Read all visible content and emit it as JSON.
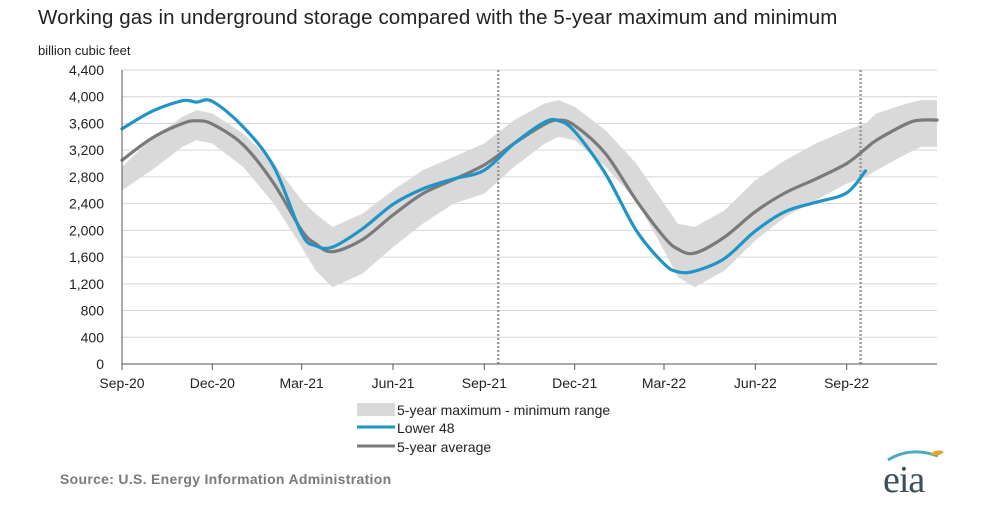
{
  "title": "Working gas in underground  storage compared with the 5-year maximum and minimum",
  "source": "Source:  U.S. Energy Information Administration",
  "logo_text": "eia",
  "colors": {
    "lower48": "#1f95c7",
    "average": "#7a7a7a",
    "range": "#d9d9d9",
    "grid": "#d6d6d6",
    "forecast_line": "#9a9a9a",
    "logo_swoosh": "#4da9c4",
    "logo_leaf": "#e0a72a"
  },
  "chart_data": {
    "type": "area",
    "ylabel": "billion cubic feet",
    "ylim": [
      0,
      4400
    ],
    "yticks": [
      "0",
      "400",
      "800",
      "1,200",
      "1,600",
      "2,000",
      "2,400",
      "2,800",
      "3,200",
      "3,600",
      "4,000",
      "4,400"
    ],
    "ytick_values": [
      0,
      400,
      800,
      1200,
      1600,
      2000,
      2400,
      2800,
      3200,
      3600,
      4000,
      4400
    ],
    "x_start": "2020-09-01",
    "x_end": "2022-12-01",
    "xticks": [
      {
        "label": "Sep-20",
        "date": "2020-09-01"
      },
      {
        "label": "Dec-20",
        "date": "2020-12-01"
      },
      {
        "label": "Mar-21",
        "date": "2021-03-01"
      },
      {
        "label": "Jun-21",
        "date": "2021-06-01"
      },
      {
        "label": "Sep-21",
        "date": "2021-09-01"
      },
      {
        "label": "Dec-21",
        "date": "2021-12-01"
      },
      {
        "label": "Mar-22",
        "date": "2022-03-01"
      },
      {
        "label": "Jun-22",
        "date": "2022-06-01"
      },
      {
        "label": "Sep-22",
        "date": "2022-09-01"
      }
    ],
    "vertical_markers": [
      "2021-09-15",
      "2022-09-15"
    ],
    "grid": true,
    "legend_position": "bottom",
    "x": [
      "2020-09-01",
      "2020-10-01",
      "2020-11-01",
      "2020-11-15",
      "2020-12-01",
      "2021-01-01",
      "2021-02-01",
      "2021-03-01",
      "2021-03-15",
      "2021-04-01",
      "2021-05-01",
      "2021-06-01",
      "2021-07-01",
      "2021-08-01",
      "2021-09-01",
      "2021-10-01",
      "2021-11-01",
      "2021-11-15",
      "2021-12-01",
      "2022-01-01",
      "2022-02-01",
      "2022-03-01",
      "2022-03-15",
      "2022-04-01",
      "2022-05-01",
      "2022-06-01",
      "2022-07-01",
      "2022-08-01",
      "2022-09-01",
      "2022-09-20",
      "2022-10-01",
      "2022-11-01",
      "2022-11-15",
      "2022-12-01"
    ],
    "series": [
      {
        "name": "5-year maximum - minimum range",
        "kind": "band",
        "max": [
          2950,
          3380,
          3700,
          3800,
          3750,
          3450,
          3000,
          2450,
          2250,
          2050,
          2250,
          2600,
          2900,
          3100,
          3300,
          3650,
          3900,
          3950,
          3850,
          3500,
          3000,
          2400,
          2100,
          2050,
          2300,
          2750,
          3050,
          3300,
          3500,
          3600,
          3750,
          3900,
          3950,
          3950
        ],
        "min": [
          2600,
          2900,
          3250,
          3350,
          3300,
          2950,
          2400,
          1750,
          1400,
          1150,
          1350,
          1750,
          2100,
          2400,
          2550,
          2950,
          3300,
          3400,
          3350,
          2950,
          2450,
          1700,
          1300,
          1150,
          1400,
          1850,
          2200,
          2450,
          2700,
          2800,
          2900,
          3150,
          3250,
          3250
        ]
      },
      {
        "name": "Lower 48",
        "kind": "line",
        "values": [
          3520,
          3780,
          3940,
          3920,
          3930,
          3550,
          2950,
          1950,
          1770,
          1750,
          2020,
          2390,
          2620,
          2770,
          2900,
          3300,
          3620,
          3640,
          3480,
          2850,
          2000,
          1500,
          1380,
          1390,
          1580,
          1990,
          2280,
          2420,
          2560,
          2890,
          null,
          null,
          null,
          null
        ]
      },
      {
        "name": "5-year average",
        "kind": "line",
        "values": [
          3050,
          3380,
          3600,
          3640,
          3590,
          3280,
          2700,
          2000,
          1800,
          1680,
          1860,
          2230,
          2550,
          2760,
          2980,
          3300,
          3590,
          3650,
          3570,
          3150,
          2450,
          1900,
          1720,
          1660,
          1900,
          2280,
          2560,
          2770,
          3000,
          3220,
          3350,
          3600,
          3650,
          3650
        ]
      }
    ]
  }
}
